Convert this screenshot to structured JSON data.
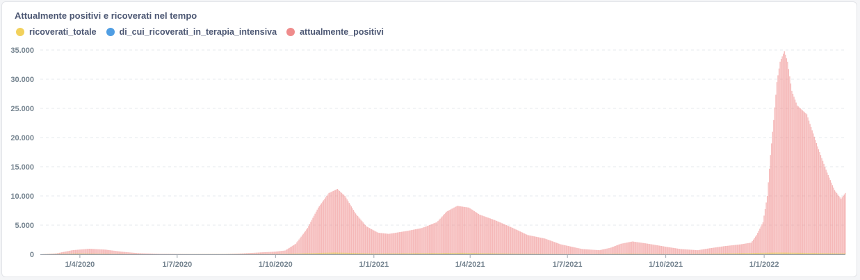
{
  "chart_data": {
    "type": "bar",
    "title": "Attualmente positivi e ricoverati nel tempo",
    "x_start": "2020-02-24",
    "x_end": "2022-03-18",
    "x_ticks": [
      {
        "date": "2020-04-01",
        "label": "1/4/2020"
      },
      {
        "date": "2020-07-01",
        "label": "1/7/2020"
      },
      {
        "date": "2020-10-01",
        "label": "1/10/2020"
      },
      {
        "date": "2021-01-01",
        "label": "1/1/2021"
      },
      {
        "date": "2021-04-01",
        "label": "1/4/2021"
      },
      {
        "date": "2021-07-01",
        "label": "1/7/2021"
      },
      {
        "date": "2021-10-01",
        "label": "1/10/2021"
      },
      {
        "date": "2022-01-01",
        "label": "1/1/2022"
      }
    ],
    "ylim": [
      0,
      35000
    ],
    "y_ticks": [
      0,
      5000,
      10000,
      15000,
      20000,
      25000,
      30000,
      35000
    ],
    "y_tick_labels": [
      "0",
      "5.000",
      "10.000",
      "15.000",
      "20.000",
      "25.000",
      "30.000",
      "35.000"
    ],
    "grid": true,
    "legend_position": "top-left",
    "series": [
      {
        "name": "ricoverati_totale",
        "color": "#f2d15c",
        "points": [
          [
            "2020-02-24",
            0
          ],
          [
            "2020-04-01",
            150
          ],
          [
            "2020-06-01",
            10
          ],
          [
            "2020-10-01",
            50
          ],
          [
            "2020-11-25",
            300
          ],
          [
            "2021-01-01",
            150
          ],
          [
            "2021-03-25",
            250
          ],
          [
            "2021-05-15",
            120
          ],
          [
            "2021-07-15",
            20
          ],
          [
            "2021-08-25",
            120
          ],
          [
            "2021-10-15",
            40
          ],
          [
            "2022-01-15",
            300
          ],
          [
            "2022-03-18",
            150
          ]
        ]
      },
      {
        "name": "di_cui_ricoverati_in_terapia_intensiva",
        "color": "#509ee3",
        "points": [
          [
            "2020-02-24",
            0
          ],
          [
            "2020-04-01",
            40
          ],
          [
            "2020-06-01",
            2
          ],
          [
            "2020-10-01",
            8
          ],
          [
            "2020-11-25",
            50
          ],
          [
            "2021-01-01",
            30
          ],
          [
            "2021-03-25",
            50
          ],
          [
            "2021-05-15",
            25
          ],
          [
            "2021-07-15",
            3
          ],
          [
            "2021-08-25",
            20
          ],
          [
            "2021-10-15",
            8
          ],
          [
            "2022-01-15",
            40
          ],
          [
            "2022-03-18",
            25
          ]
        ]
      },
      {
        "name": "attualmente_positivi",
        "color": "#ef8c8c",
        "points": [
          [
            "2020-02-24",
            0
          ],
          [
            "2020-03-10",
            150
          ],
          [
            "2020-03-25",
            700
          ],
          [
            "2020-04-10",
            950
          ],
          [
            "2020-04-25",
            800
          ],
          [
            "2020-05-10",
            450
          ],
          [
            "2020-05-25",
            200
          ],
          [
            "2020-06-15",
            80
          ],
          [
            "2020-07-15",
            40
          ],
          [
            "2020-08-15",
            50
          ],
          [
            "2020-08-31",
            150
          ],
          [
            "2020-09-20",
            350
          ],
          [
            "2020-10-01",
            450
          ],
          [
            "2020-10-10",
            650
          ],
          [
            "2020-10-20",
            1800
          ],
          [
            "2020-10-31",
            4500
          ],
          [
            "2020-11-10",
            8000
          ],
          [
            "2020-11-20",
            10500
          ],
          [
            "2020-11-28",
            11200
          ],
          [
            "2020-12-05",
            10000
          ],
          [
            "2020-12-15",
            7000
          ],
          [
            "2020-12-25",
            4800
          ],
          [
            "2021-01-05",
            3700
          ],
          [
            "2021-01-15",
            3500
          ],
          [
            "2021-02-01",
            4000
          ],
          [
            "2021-02-15",
            4500
          ],
          [
            "2021-03-01",
            5500
          ],
          [
            "2021-03-10",
            7300
          ],
          [
            "2021-03-20",
            8300
          ],
          [
            "2021-03-31",
            8000
          ],
          [
            "2021-04-10",
            6800
          ],
          [
            "2021-04-25",
            5800
          ],
          [
            "2021-05-10",
            4600
          ],
          [
            "2021-05-25",
            3300
          ],
          [
            "2021-06-10",
            2700
          ],
          [
            "2021-06-25",
            1700
          ],
          [
            "2021-07-15",
            900
          ],
          [
            "2021-07-31",
            700
          ],
          [
            "2021-08-10",
            1100
          ],
          [
            "2021-08-20",
            1800
          ],
          [
            "2021-08-31",
            2200
          ],
          [
            "2021-09-15",
            1800
          ],
          [
            "2021-10-01",
            1300
          ],
          [
            "2021-10-15",
            900
          ],
          [
            "2021-10-31",
            700
          ],
          [
            "2021-11-10",
            1000
          ],
          [
            "2021-11-25",
            1400
          ],
          [
            "2021-12-10",
            1700
          ],
          [
            "2021-12-20",
            2000
          ],
          [
            "2021-12-25",
            3300
          ],
          [
            "2021-12-31",
            5500
          ],
          [
            "2022-01-04",
            10000
          ],
          [
            "2022-01-07",
            17000
          ],
          [
            "2022-01-10",
            23000
          ],
          [
            "2022-01-13",
            29500
          ],
          [
            "2022-01-16",
            33000
          ],
          [
            "2022-01-20",
            34800
          ],
          [
            "2022-01-23",
            33000
          ],
          [
            "2022-01-27",
            28000
          ],
          [
            "2022-02-01",
            25500
          ],
          [
            "2022-02-10",
            24000
          ],
          [
            "2022-02-20",
            18500
          ],
          [
            "2022-03-01",
            14000
          ],
          [
            "2022-03-08",
            11000
          ],
          [
            "2022-03-14",
            9500
          ],
          [
            "2022-03-18",
            10500
          ]
        ]
      }
    ]
  }
}
